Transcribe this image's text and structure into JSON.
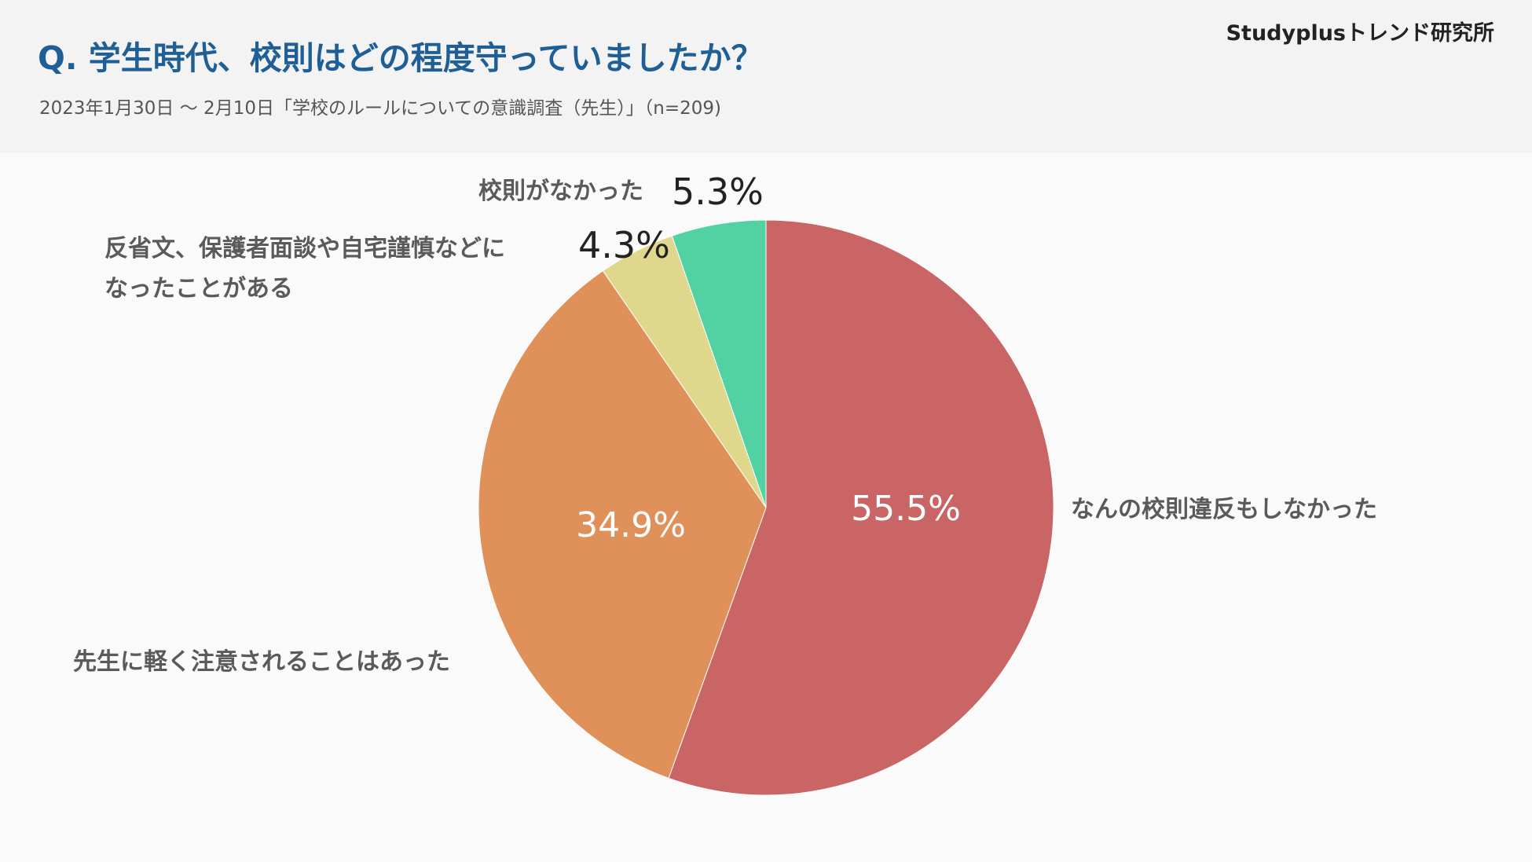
{
  "header": {
    "title": "Q. 学生時代、校則はどの程度守っていましたか？",
    "subtitle": "2023年1月30日 〜 2月10日「学校のルールについての意識調査（先生）」（n=209)",
    "brand": "Studyplusトレンド研究所"
  },
  "chart_data": {
    "type": "pie",
    "title": "Q. 学生時代、校則はどの程度守っていましたか？",
    "start_angle": "12 o'clock",
    "direction": "clockwise",
    "slices": [
      {
        "label": "なんの校則違反もしなかった",
        "value": 55.5,
        "value_label": "55.5%",
        "color": "#c96565"
      },
      {
        "label": "先生に軽く注意されることはあった",
        "value": 34.9,
        "value_label": "34.9%",
        "color": "#e0915a"
      },
      {
        "label_lines": [
          "反省文、保護者面談や自宅謹慎などに",
          "なったことがある"
        ],
        "value": 4.3,
        "value_label": "4.3%",
        "color": "#dfd88c"
      },
      {
        "label": "校則がなかった",
        "value": 5.3,
        "value_label": "5.3%",
        "color": "#52d2a3"
      }
    ]
  }
}
